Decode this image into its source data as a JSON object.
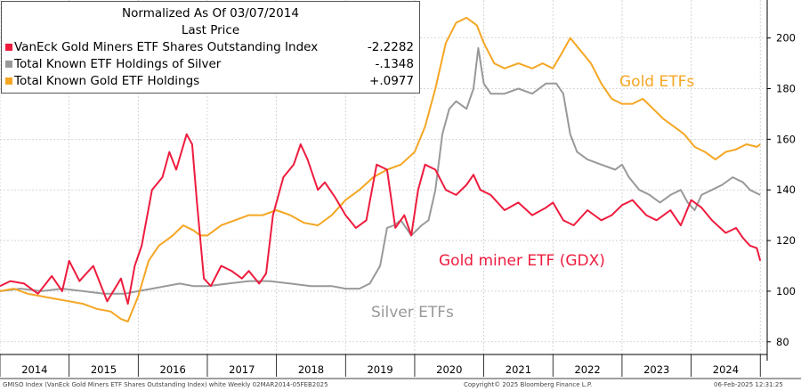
{
  "chart_data": {
    "type": "line",
    "title": "Normalized As Of 03/07/2014",
    "subtitle": "Last Price",
    "x_ticks": [
      "2014",
      "2015",
      "2016",
      "2017",
      "2018",
      "2019",
      "2020",
      "2021",
      "2022",
      "2023",
      "2024"
    ],
    "xlim": [
      2014.0,
      2025.1
    ],
    "ylim": [
      75,
      215
    ],
    "y_ticks": [
      80,
      100,
      120,
      140,
      160,
      180,
      200
    ],
    "grid": true,
    "legend_position": "top-left",
    "series": [
      {
        "name": "VanEck Gold Miners ETF Shares Outstanding Index",
        "label": "Gold miner ETF (GDX)",
        "color": "#ee1c3e",
        "last_value": "-2.2282",
        "points": [
          [
            2014.0,
            102
          ],
          [
            2014.15,
            104
          ],
          [
            2014.35,
            103
          ],
          [
            2014.55,
            99
          ],
          [
            2014.75,
            106
          ],
          [
            2014.9,
            100
          ],
          [
            2015.0,
            112
          ],
          [
            2015.15,
            104
          ],
          [
            2015.35,
            110
          ],
          [
            2015.55,
            96
          ],
          [
            2015.75,
            105
          ],
          [
            2015.85,
            95
          ],
          [
            2015.95,
            110
          ],
          [
            2016.05,
            118
          ],
          [
            2016.2,
            140
          ],
          [
            2016.35,
            145
          ],
          [
            2016.45,
            155
          ],
          [
            2016.55,
            148
          ],
          [
            2016.7,
            162
          ],
          [
            2016.78,
            158
          ],
          [
            2016.85,
            135
          ],
          [
            2016.95,
            105
          ],
          [
            2017.05,
            102
          ],
          [
            2017.2,
            110
          ],
          [
            2017.35,
            108
          ],
          [
            2017.5,
            105
          ],
          [
            2017.6,
            108
          ],
          [
            2017.75,
            103
          ],
          [
            2017.85,
            107
          ],
          [
            2017.95,
            130
          ],
          [
            2018.1,
            145
          ],
          [
            2018.25,
            150
          ],
          [
            2018.35,
            158
          ],
          [
            2018.45,
            152
          ],
          [
            2018.6,
            140
          ],
          [
            2018.7,
            143
          ],
          [
            2018.85,
            137
          ],
          [
            2019.0,
            130
          ],
          [
            2019.15,
            125
          ],
          [
            2019.3,
            128
          ],
          [
            2019.45,
            150
          ],
          [
            2019.6,
            148
          ],
          [
            2019.72,
            125
          ],
          [
            2019.85,
            130
          ],
          [
            2019.95,
            122
          ],
          [
            2020.05,
            140
          ],
          [
            2020.15,
            150
          ],
          [
            2020.3,
            148
          ],
          [
            2020.45,
            140
          ],
          [
            2020.6,
            138
          ],
          [
            2020.75,
            142
          ],
          [
            2020.85,
            146
          ],
          [
            2020.95,
            140
          ],
          [
            2021.1,
            138
          ],
          [
            2021.3,
            132
          ],
          [
            2021.5,
            135
          ],
          [
            2021.7,
            130
          ],
          [
            2021.9,
            133
          ],
          [
            2022.0,
            135
          ],
          [
            2022.15,
            128
          ],
          [
            2022.3,
            126
          ],
          [
            2022.5,
            132
          ],
          [
            2022.7,
            128
          ],
          [
            2022.85,
            130
          ],
          [
            2023.0,
            134
          ],
          [
            2023.15,
            136
          ],
          [
            2023.35,
            130
          ],
          [
            2023.5,
            128
          ],
          [
            2023.7,
            132
          ],
          [
            2023.85,
            126
          ],
          [
            2024.0,
            136
          ],
          [
            2024.15,
            133
          ],
          [
            2024.3,
            128
          ],
          [
            2024.5,
            123
          ],
          [
            2024.65,
            125
          ],
          [
            2024.75,
            121
          ],
          [
            2024.85,
            118
          ],
          [
            2024.95,
            117
          ],
          [
            2025.0,
            112
          ]
        ]
      },
      {
        "name": "Total Known ETF Holdings of Silver",
        "label": "Silver ETFs",
        "color": "#999999",
        "last_value": "-.1348",
        "points": [
          [
            2014.0,
            100
          ],
          [
            2014.3,
            101
          ],
          [
            2014.6,
            100
          ],
          [
            2014.9,
            101
          ],
          [
            2015.2,
            100
          ],
          [
            2015.5,
            99
          ],
          [
            2015.8,
            99
          ],
          [
            2016.0,
            100
          ],
          [
            2016.2,
            101
          ],
          [
            2016.4,
            102
          ],
          [
            2016.6,
            103
          ],
          [
            2016.8,
            102
          ],
          [
            2017.0,
            102
          ],
          [
            2017.3,
            103
          ],
          [
            2017.6,
            104
          ],
          [
            2017.9,
            104
          ],
          [
            2018.2,
            103
          ],
          [
            2018.5,
            102
          ],
          [
            2018.8,
            102
          ],
          [
            2019.0,
            101
          ],
          [
            2019.2,
            101
          ],
          [
            2019.35,
            103
          ],
          [
            2019.5,
            110
          ],
          [
            2019.6,
            125
          ],
          [
            2019.7,
            126
          ],
          [
            2019.8,
            128
          ],
          [
            2019.95,
            122
          ],
          [
            2020.1,
            126
          ],
          [
            2020.2,
            128
          ],
          [
            2020.3,
            140
          ],
          [
            2020.4,
            162
          ],
          [
            2020.5,
            172
          ],
          [
            2020.6,
            175
          ],
          [
            2020.75,
            172
          ],
          [
            2020.85,
            180
          ],
          [
            2020.92,
            196
          ],
          [
            2021.0,
            182
          ],
          [
            2021.1,
            178
          ],
          [
            2021.3,
            178
          ],
          [
            2021.5,
            180
          ],
          [
            2021.7,
            178
          ],
          [
            2021.9,
            182
          ],
          [
            2022.05,
            182
          ],
          [
            2022.15,
            178
          ],
          [
            2022.25,
            162
          ],
          [
            2022.35,
            155
          ],
          [
            2022.5,
            152
          ],
          [
            2022.7,
            150
          ],
          [
            2022.9,
            148
          ],
          [
            2023.0,
            150
          ],
          [
            2023.1,
            145
          ],
          [
            2023.25,
            140
          ],
          [
            2023.4,
            138
          ],
          [
            2023.55,
            135
          ],
          [
            2023.7,
            138
          ],
          [
            2023.85,
            140
          ],
          [
            2023.95,
            135
          ],
          [
            2024.05,
            132
          ],
          [
            2024.15,
            138
          ],
          [
            2024.3,
            140
          ],
          [
            2024.45,
            142
          ],
          [
            2024.6,
            145
          ],
          [
            2024.75,
            143
          ],
          [
            2024.85,
            140
          ],
          [
            2025.0,
            138
          ]
        ]
      },
      {
        "name": "Total Known Gold ETF Holdings",
        "label": "Gold ETFs",
        "color": "#f5a623",
        "last_value": "+.0977",
        "points": [
          [
            2014.0,
            100
          ],
          [
            2014.2,
            101
          ],
          [
            2014.4,
            99
          ],
          [
            2014.6,
            98
          ],
          [
            2014.8,
            97
          ],
          [
            2015.0,
            96
          ],
          [
            2015.2,
            95
          ],
          [
            2015.4,
            93
          ],
          [
            2015.6,
            92
          ],
          [
            2015.75,
            89
          ],
          [
            2015.85,
            88
          ],
          [
            2016.0,
            98
          ],
          [
            2016.15,
            112
          ],
          [
            2016.3,
            118
          ],
          [
            2016.5,
            122
          ],
          [
            2016.65,
            126
          ],
          [
            2016.8,
            124
          ],
          [
            2016.9,
            122
          ],
          [
            2017.0,
            122
          ],
          [
            2017.2,
            126
          ],
          [
            2017.4,
            128
          ],
          [
            2017.6,
            130
          ],
          [
            2017.8,
            130
          ],
          [
            2018.0,
            132
          ],
          [
            2018.2,
            130
          ],
          [
            2018.4,
            127
          ],
          [
            2018.6,
            126
          ],
          [
            2018.8,
            130
          ],
          [
            2019.0,
            136
          ],
          [
            2019.2,
            140
          ],
          [
            2019.4,
            145
          ],
          [
            2019.6,
            148
          ],
          [
            2019.8,
            150
          ],
          [
            2020.0,
            155
          ],
          [
            2020.15,
            165
          ],
          [
            2020.3,
            180
          ],
          [
            2020.45,
            198
          ],
          [
            2020.6,
            206
          ],
          [
            2020.75,
            208
          ],
          [
            2020.9,
            205
          ],
          [
            2021.0,
            198
          ],
          [
            2021.15,
            190
          ],
          [
            2021.3,
            188
          ],
          [
            2021.5,
            190
          ],
          [
            2021.7,
            188
          ],
          [
            2021.85,
            190
          ],
          [
            2022.0,
            188
          ],
          [
            2022.15,
            195
          ],
          [
            2022.25,
            200
          ],
          [
            2022.4,
            195
          ],
          [
            2022.55,
            190
          ],
          [
            2022.7,
            182
          ],
          [
            2022.85,
            176
          ],
          [
            2023.0,
            174
          ],
          [
            2023.15,
            174
          ],
          [
            2023.3,
            176
          ],
          [
            2023.45,
            172
          ],
          [
            2023.6,
            168
          ],
          [
            2023.75,
            165
          ],
          [
            2023.9,
            162
          ],
          [
            2024.05,
            157
          ],
          [
            2024.2,
            155
          ],
          [
            2024.35,
            152
          ],
          [
            2024.5,
            155
          ],
          [
            2024.65,
            156
          ],
          [
            2024.8,
            158
          ],
          [
            2024.95,
            157
          ],
          [
            2025.0,
            158
          ]
        ]
      }
    ],
    "annotations": [
      {
        "text": "Gold ETFs",
        "series_index": 2
      },
      {
        "text": "Gold miner ETF (GDX)",
        "series_index": 0
      },
      {
        "text": "Silver ETFs",
        "series_index": 1
      }
    ]
  },
  "footer": {
    "left": "GMISO Index (VanEck Gold Miners ETF Shares Outstanding Index) white  Weekly 02MAR2014-05FEB2025",
    "center": "Copyright© 2025 Bloomberg Finance L.P.",
    "right": "06-Feb-2025 12:31:25"
  }
}
